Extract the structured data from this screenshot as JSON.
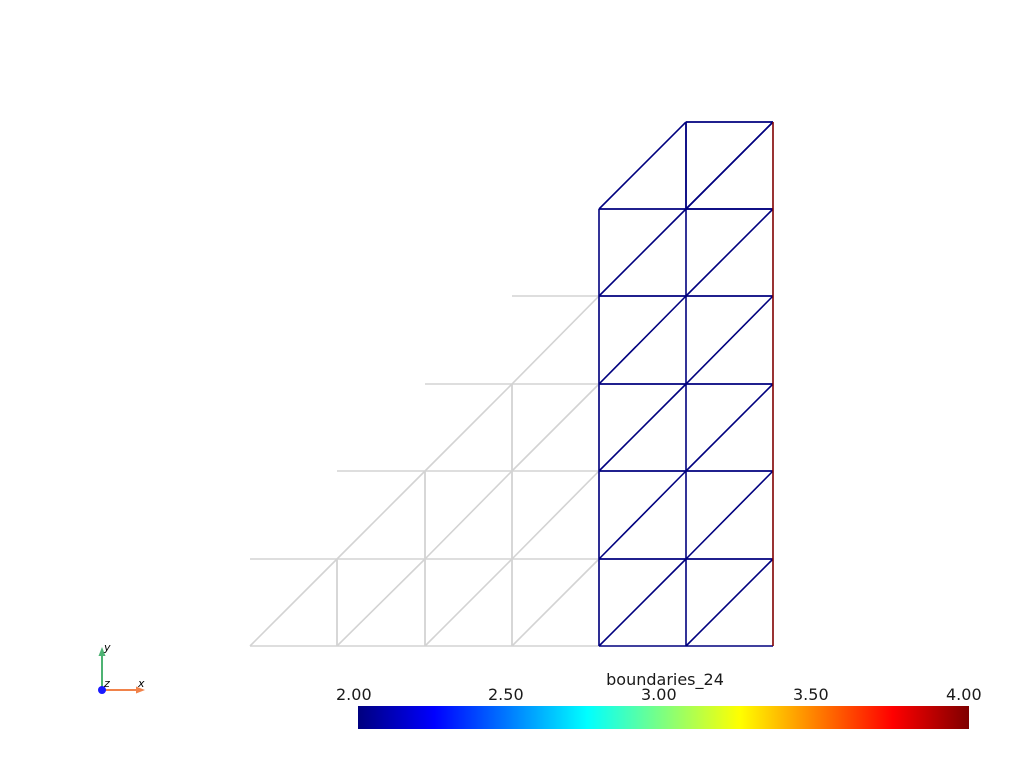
{
  "scene": {
    "background": "#ffffff",
    "colors": {
      "inactive_edge": "#d3d3d3",
      "low_boundary": "#00007f",
      "high_boundary": "#800000"
    }
  },
  "scalar_bar": {
    "title": "boundaries_24",
    "range": [
      2.0,
      4.0
    ],
    "tick_labels": [
      "2.00",
      "2.50",
      "3.00",
      "3.50",
      "4.00"
    ],
    "colormap": "jet",
    "colormap_stops": [
      "#00007f",
      "#0000ff",
      "#007fff",
      "#00ffff",
      "#7fff7f",
      "#ffff00",
      "#ff7f00",
      "#ff0000",
      "#7f0000"
    ]
  },
  "orientation_axes": {
    "x_label": "x",
    "y_label": "y",
    "z_label": "z",
    "x_color": "#f0824a",
    "y_color": "#4db373",
    "z_color": "#1a1aff"
  }
}
